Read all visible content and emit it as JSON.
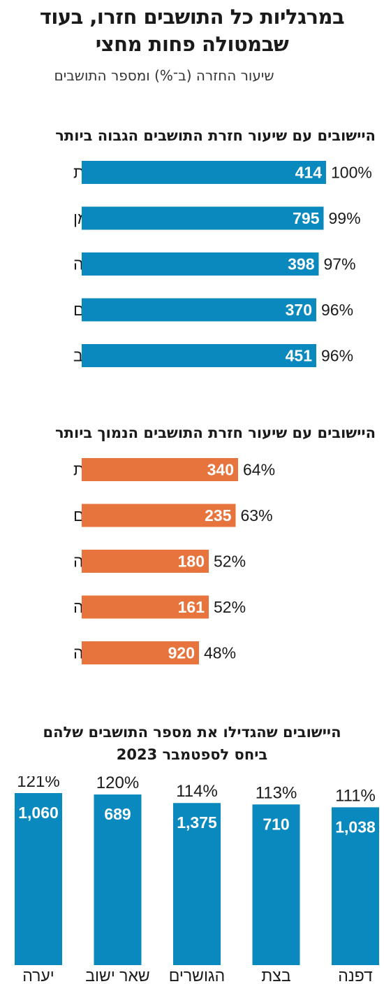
{
  "title_line1": "במרגליות כל התושבים חזרו, בעוד",
  "title_line2": "שבמטולה פחות מחצי",
  "subtitle": "שיעור החזרה (ב־%) ומספר התושבים",
  "colors": {
    "blue": "#0a89bf",
    "orange": "#e8743d",
    "text": "#1a1a1a"
  },
  "chart_data": [
    {
      "type": "bar",
      "orientation": "horizontal",
      "title": "היישובים עם שיעור חזרת התושבים הגבוה ביותר",
      "color": "#0a89bf",
      "categories": [
        "מרגליות",
        "לימן",
        "שומרה",
        "אבן מנחם",
        "דוב\"ב"
      ],
      "return_rate": [
        100,
        99,
        97,
        96,
        96
      ],
      "return_rate_labels": [
        "100%",
        "99%",
        "97%",
        "96%",
        "96%"
      ],
      "residents": [
        "414",
        "795",
        "398",
        "370",
        "451"
      ],
      "xlim": [
        0,
        100
      ]
    },
    {
      "type": "bar",
      "orientation": "horizontal",
      "title": "היישובים עם שיעור חזרת התושבים הנמוך ביותר",
      "color": "#e8743d",
      "categories": [
        "אדמית",
        "משגב עם",
        "שתולה",
        "מנורה",
        "מטולה"
      ],
      "return_rate": [
        64,
        63,
        52,
        52,
        48
      ],
      "return_rate_labels": [
        "64%",
        "63%",
        "52%",
        "52%",
        "48%"
      ],
      "residents": [
        "340",
        "235",
        "180",
        "161",
        "920"
      ],
      "xlim": [
        0,
        100
      ]
    },
    {
      "type": "bar",
      "orientation": "vertical",
      "title_line1": "היישובים שהגדילו את מספר התושבים שלהם",
      "title_line2": "ביחס לספטמבר 2023",
      "color": "#0a89bf",
      "categories": [
        "יערה",
        "שאר ישוב",
        "הגושרים",
        "בצת",
        "דפנה"
      ],
      "growth_rate": [
        121,
        120,
        114,
        113,
        111
      ],
      "growth_rate_labels": [
        "121%",
        "120%",
        "114%",
        "113%",
        "111%"
      ],
      "residents": [
        "1,060",
        "689",
        "1,375",
        "710",
        "1,038"
      ],
      "ylim": [
        0,
        121
      ]
    }
  ]
}
